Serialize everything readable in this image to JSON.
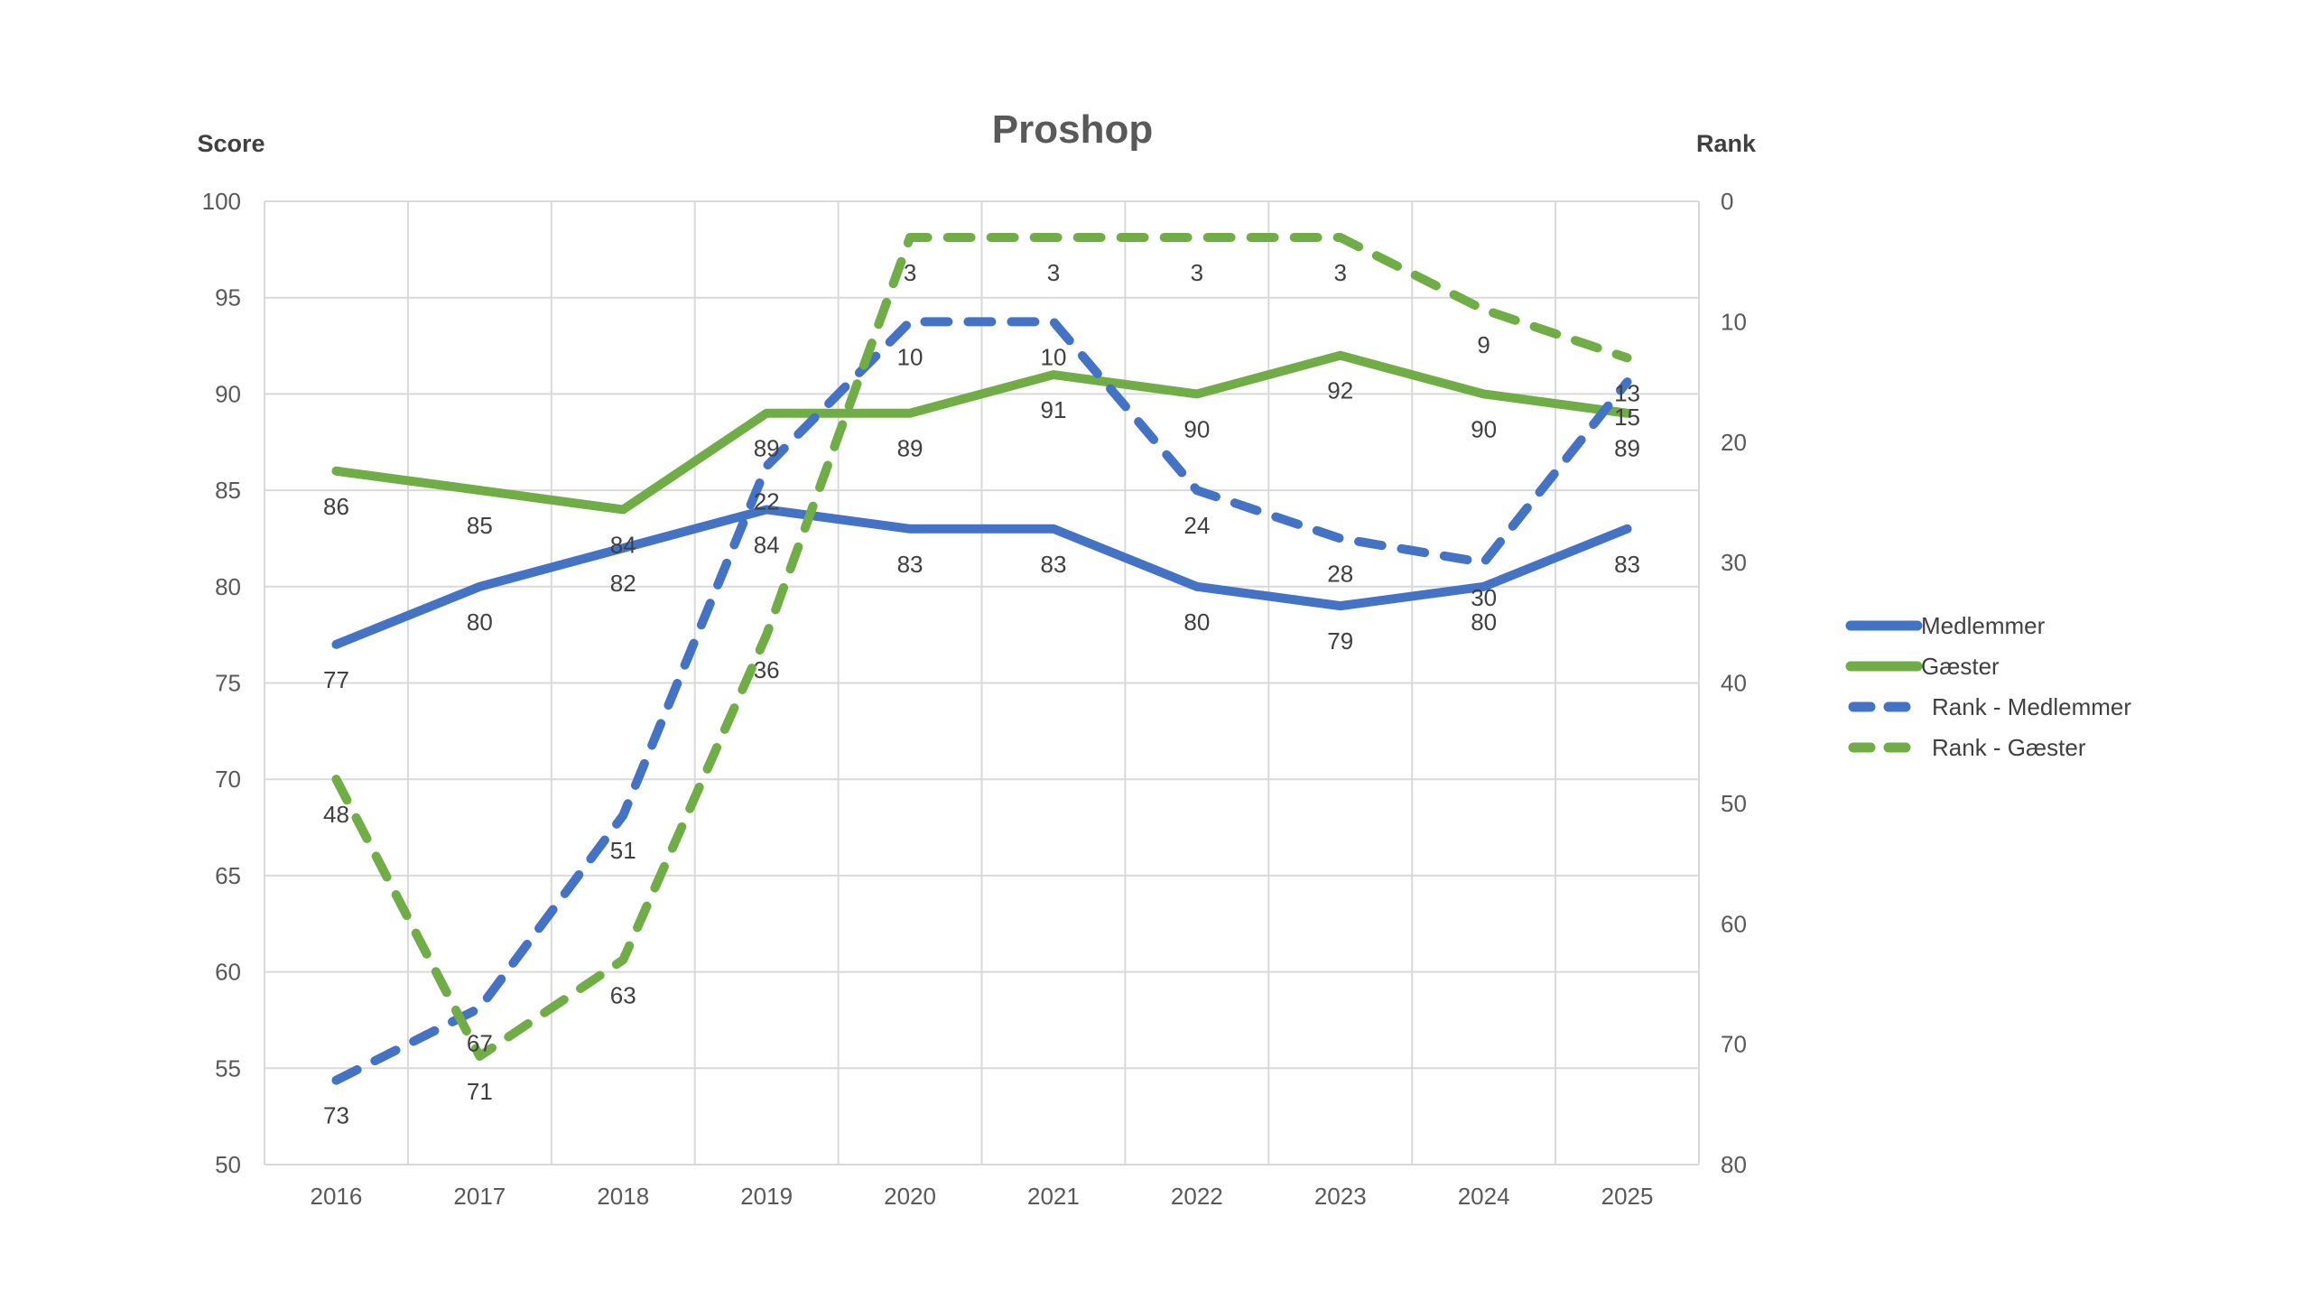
{
  "chart_data": {
    "type": "line",
    "title": "Proshop",
    "categories": [
      "2016",
      "2017",
      "2018",
      "2019",
      "2020",
      "2021",
      "2022",
      "2023",
      "2024",
      "2025"
    ],
    "left_axis": {
      "title": "Score",
      "min": 50,
      "max": 100,
      "step": 5,
      "ticks": [
        100,
        95,
        90,
        85,
        80,
        75,
        70,
        65,
        60,
        55,
        50
      ]
    },
    "right_axis": {
      "title": "Rank",
      "min": 0,
      "max": 80,
      "step": 10,
      "inverted": true,
      "ticks": [
        0,
        10,
        20,
        30,
        40,
        50,
        60,
        70,
        80
      ]
    },
    "grid": true,
    "legend_position": "right",
    "series": [
      {
        "name": "Medlemmer",
        "id": "medlemmer",
        "axis": "score",
        "style": "solid",
        "color": "#4472C4",
        "values": [
          77,
          80,
          82,
          84,
          83,
          83,
          80,
          79,
          80,
          83
        ]
      },
      {
        "name": "Gæster",
        "id": "gaester",
        "axis": "score",
        "style": "solid",
        "color": "#70AD47",
        "values": [
          86,
          85,
          84,
          89,
          89,
          91,
          90,
          92,
          90,
          89
        ]
      },
      {
        "name": "Rank - Medlemmer",
        "id": "rank-medlemmer",
        "axis": "rank",
        "style": "dashed",
        "color": "#4472C4",
        "values": [
          73,
          67,
          51,
          22,
          10,
          10,
          24,
          28,
          30,
          15
        ]
      },
      {
        "name": "Rank - Gæster",
        "id": "rank-gaester",
        "axis": "rank",
        "style": "dashed",
        "color": "#70AD47",
        "values": [
          48,
          71,
          63,
          36,
          3,
          3,
          3,
          3,
          9,
          13
        ]
      }
    ]
  },
  "colors": {
    "blue": "#4472C4",
    "green": "#70AD47",
    "gridline": "#D9D9D9",
    "tick_text": "#595959",
    "data_label_text": "#404040",
    "title_text": "#595959",
    "background": "#FFFFFF"
  }
}
